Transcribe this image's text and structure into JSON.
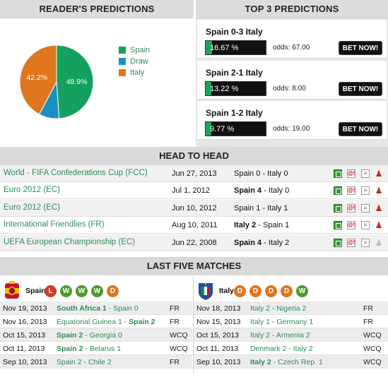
{
  "readers_predictions": {
    "title": "READER'S PREDICTIONS",
    "chart_data": {
      "type": "pie",
      "slices": [
        {
          "label": "Spain",
          "value": 48.9,
          "color": "#14a05e",
          "shown": "48.9%"
        },
        {
          "label": "Draw",
          "value": 8.9,
          "color": "#1a8fc0",
          "shown": ""
        },
        {
          "label": "Italy",
          "value": 42.2,
          "color": "#e0761d",
          "shown": "42.2%"
        }
      ]
    }
  },
  "top3": {
    "title": "TOP 3 PREDICTIONS",
    "items": [
      {
        "score": "Spain 0-3 Italy",
        "pct_label": "16.67 %",
        "pct": 16.67,
        "odds": "odds: 67.00",
        "button": "BET NOW!"
      },
      {
        "score": "Spain 2-1 Italy",
        "pct_label": "13.22 %",
        "pct": 13.22,
        "odds": "odds: 8.00",
        "button": "BET NOW!"
      },
      {
        "score": "Spain 1-2 Italy",
        "pct_label": "9.77 %",
        "pct": 9.77,
        "odds": "odds: 19.00",
        "button": "BET NOW!"
      }
    ]
  },
  "head_to_head": {
    "title": "HEAD TO HEAD",
    "rows": [
      {
        "competition": "World - FIFA Confederations Cup (FCC)",
        "date": "Jun 27, 2013",
        "home": "Spain 0",
        "away": "Italy 0",
        "winner": "none"
      },
      {
        "competition": "Euro 2012 (EC)",
        "date": "Jul 1, 2012",
        "home": "Spain 4",
        "away": "Italy 0",
        "winner": "home"
      },
      {
        "competition": "Euro 2012 (EC)",
        "date": "Jun 10, 2012",
        "home": "Spain 1",
        "away": "Italy 1",
        "winner": "none"
      },
      {
        "competition": "International Friendlies (FR)",
        "date": "Aug 10, 2011",
        "home": "Italy 2",
        "away": "Spain 1",
        "winner": "home"
      },
      {
        "competition": "UEFA European Championship (EC)",
        "date": "Jun 22, 2008",
        "home": "Spain 4",
        "away": "Italy 2",
        "winner": "home"
      }
    ]
  },
  "last_five": {
    "title": "LAST FIVE MATCHES",
    "spain": {
      "name": "Spain",
      "form": [
        "L",
        "W",
        "W",
        "W",
        "D"
      ],
      "matches": [
        {
          "date": "Nov 19, 2013",
          "a": "South Africa 1",
          "sep": " - ",
          "b": "Spain 0",
          "bold": "a",
          "comp": "FR"
        },
        {
          "date": "Nov 16, 2013",
          "a": "Equatorial Guinea 1",
          "sep": " - ",
          "b": "Spain 2",
          "bold": "b",
          "comp": "FR"
        },
        {
          "date": "Oct 15, 2013",
          "a": "Spain 2",
          "sep": " - ",
          "b": "Georgia 0",
          "bold": "a",
          "comp": "WCQ"
        },
        {
          "date": "Oct 11, 2013",
          "a": "Spain 2",
          "sep": " - ",
          "b": "Belarus 1",
          "bold": "a",
          "comp": "WCQ"
        },
        {
          "date": "Sep 10, 2013",
          "a": "Spain 2",
          "sep": " - ",
          "b": "Chile 2",
          "bold": "none",
          "comp": "FR"
        }
      ]
    },
    "italy": {
      "name": "Italy",
      "form": [
        "D",
        "D",
        "D",
        "D",
        "W"
      ],
      "matches": [
        {
          "date": "Nov 18, 2013",
          "a": "Italy 2",
          "sep": " - ",
          "b": "Nigeria 2",
          "bold": "none",
          "comp": "FR"
        },
        {
          "date": "Nov 15, 2013",
          "a": "Italy 1",
          "sep": " - ",
          "b": "Germany 1",
          "bold": "none",
          "comp": "FR"
        },
        {
          "date": "Oct 15, 2013",
          "a": "Italy 2",
          "sep": " - ",
          "b": "Armenia 2",
          "bold": "none",
          "comp": "WCQ"
        },
        {
          "date": "Oct 11, 2013",
          "a": "Denmark 2",
          "sep": " - ",
          "b": "Italy 2",
          "bold": "none",
          "comp": "WCQ"
        },
        {
          "date": "Sep 10, 2013",
          "a": "Italy 2",
          "sep": " - ",
          "b": "Czech Rep. 1",
          "bold": "a",
          "comp": "WCQ"
        }
      ]
    }
  }
}
